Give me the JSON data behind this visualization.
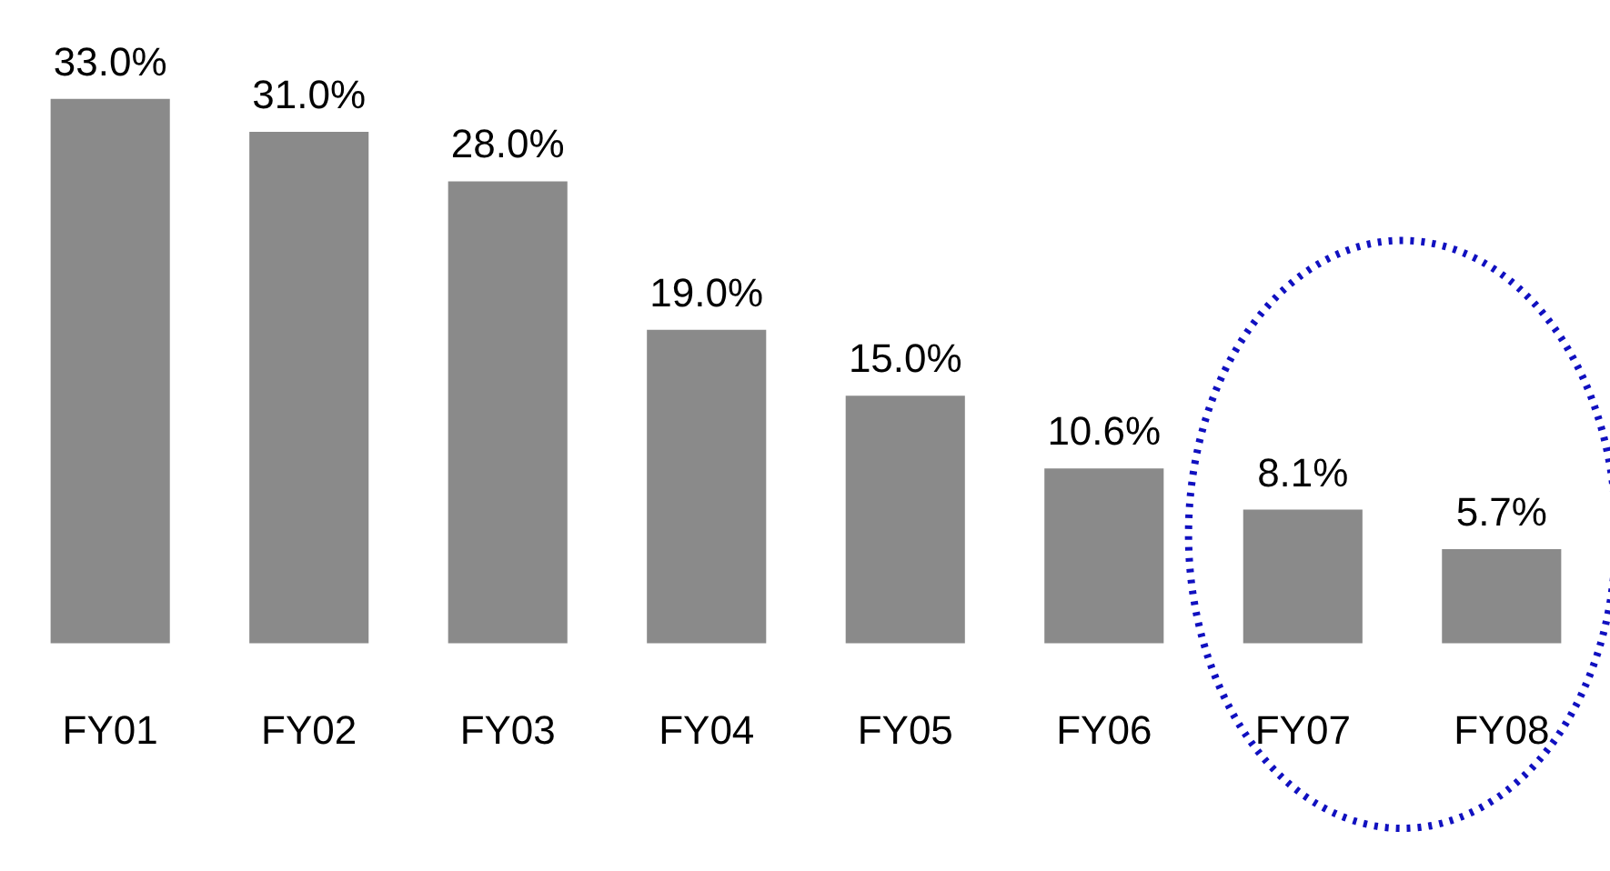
{
  "chart_data": {
    "type": "bar",
    "categories": [
      "FY01",
      "FY02",
      "FY03",
      "FY04",
      "FY05",
      "FY06",
      "FY07",
      "FY08"
    ],
    "values": [
      33.0,
      31.0,
      28.0,
      19.0,
      15.0,
      10.6,
      8.1,
      5.7
    ],
    "value_labels": [
      "33.0%",
      "31.0%",
      "28.0%",
      "19.0%",
      "15.0%",
      "10.6%",
      "8.1%",
      "5.7%"
    ],
    "color": "#8a8a8a"
  }
}
